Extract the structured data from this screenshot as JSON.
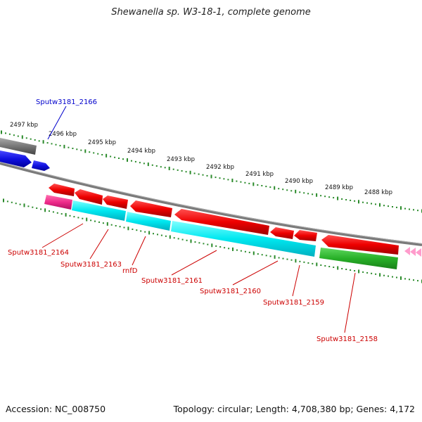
{
  "title": "Shewanella sp. W3-18-1, complete genome",
  "footer": {
    "accession": "Accession: NC_008750",
    "topology": "Topology: circular; Length: 4,708,380 bp; Genes: 4,172"
  },
  "scale_labels": [
    "2497 kbp",
    "2496 kbp",
    "2495 kbp",
    "2494 kbp",
    "2493 kbp",
    "2492 kbp",
    "2491 kbp",
    "2490 kbp",
    "2489 kbp",
    "2488 kbp"
  ],
  "gene_labels": {
    "g2166": "Sputw3181_2166",
    "g2164": "Sputw3181_2164",
    "g2163": "Sputw3181_2163",
    "rnfD": "rnfD",
    "g2161": "Sputw3181_2161",
    "g2160": "Sputw3181_2160",
    "g2159": "Sputw3181_2159",
    "g2158": "Sputw3181_2158"
  },
  "colors": {
    "backbone": "#808080",
    "scale_ticks": "#2a8a2a",
    "forward_gene": "#1a1ad8",
    "reverse_gene": "#e00000",
    "cds_cyan": "#00e5ee",
    "cds_green": "#2db52d",
    "cds_pink": "#ee2a8a",
    "label_blue": "#0000cc",
    "label_red": "#cc0000"
  }
}
